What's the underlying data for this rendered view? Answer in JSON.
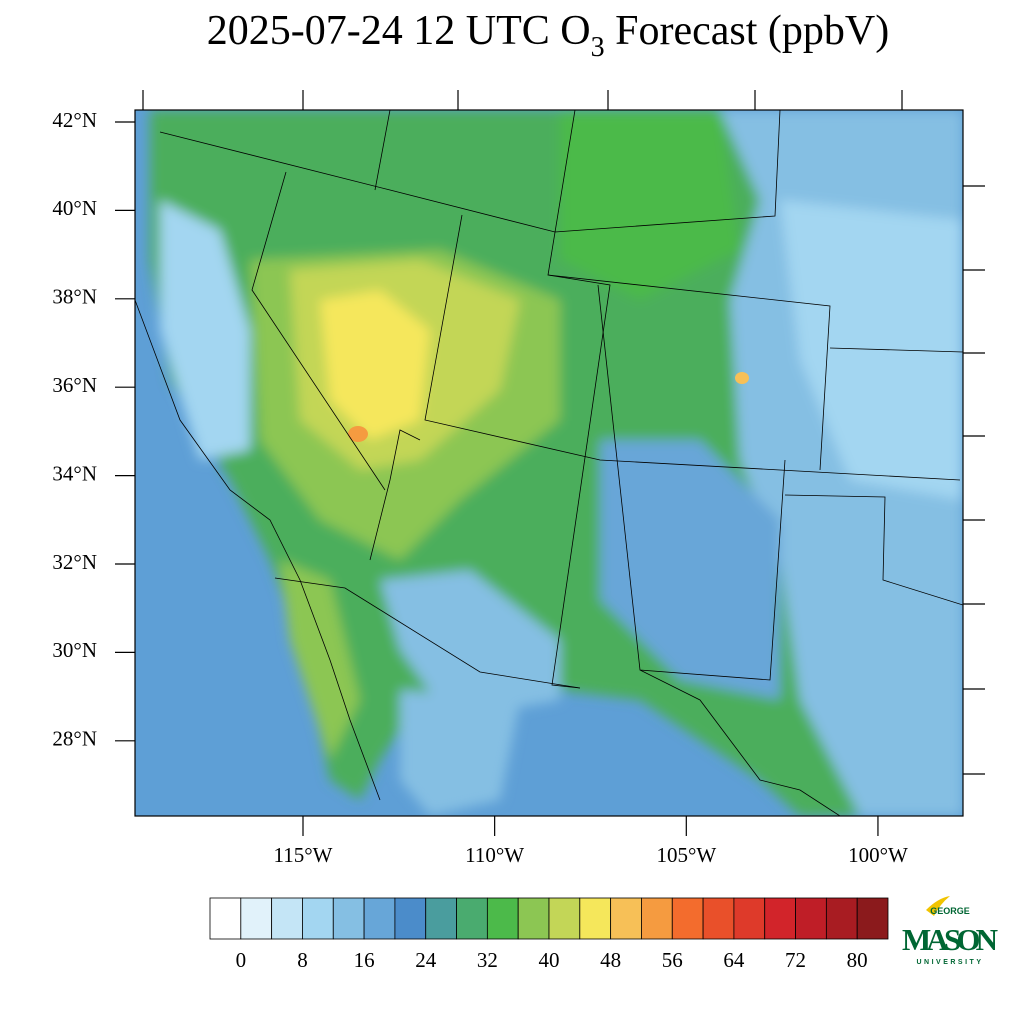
{
  "title": {
    "main": "2025-07-24 12 UTC O",
    "subscript": "3",
    "rest": " Forecast (ppbV)"
  },
  "map": {
    "lat_ticks": [
      {
        "value": 42,
        "label": "42°N"
      },
      {
        "value": 40,
        "label": "40°N"
      },
      {
        "value": 38,
        "label": "38°N"
      },
      {
        "value": 36,
        "label": "36°N"
      },
      {
        "value": 34,
        "label": "34°N"
      },
      {
        "value": 32,
        "label": "32°N"
      },
      {
        "value": 30,
        "label": "30°N"
      },
      {
        "value": 28,
        "label": "28°N"
      }
    ],
    "lon_ticks": [
      {
        "value": -115,
        "label": "115°W"
      },
      {
        "value": -110,
        "label": "110°W"
      },
      {
        "value": -105,
        "label": "105°W"
      },
      {
        "value": -100,
        "label": "100°W"
      }
    ]
  },
  "colorbar": {
    "levels": [
      0,
      4,
      8,
      12,
      16,
      20,
      24,
      28,
      32,
      36,
      40,
      44,
      48,
      52,
      56,
      60,
      64,
      68,
      72,
      76,
      80
    ],
    "ticks": [
      0,
      8,
      16,
      24,
      32,
      40,
      48,
      56,
      64,
      72,
      80
    ],
    "colors": [
      "#ffffff",
      "#e1f2fa",
      "#c4e5f6",
      "#a3d6f1",
      "#85bfe3",
      "#67a6d8",
      "#4b8cca",
      "#4a9d9e",
      "#4aab6f",
      "#4cba4a",
      "#8cc653",
      "#c3d657",
      "#f5e75b",
      "#f7c057",
      "#f59b40",
      "#f36c2d",
      "#e9502a",
      "#de3a2a",
      "#d2242a",
      "#bf1e27",
      "#a81c22",
      "#8b1a1c"
    ]
  },
  "logo": {
    "top": "GEORGE",
    "main": "MASON",
    "bottom": "UNIVERSITY"
  }
}
